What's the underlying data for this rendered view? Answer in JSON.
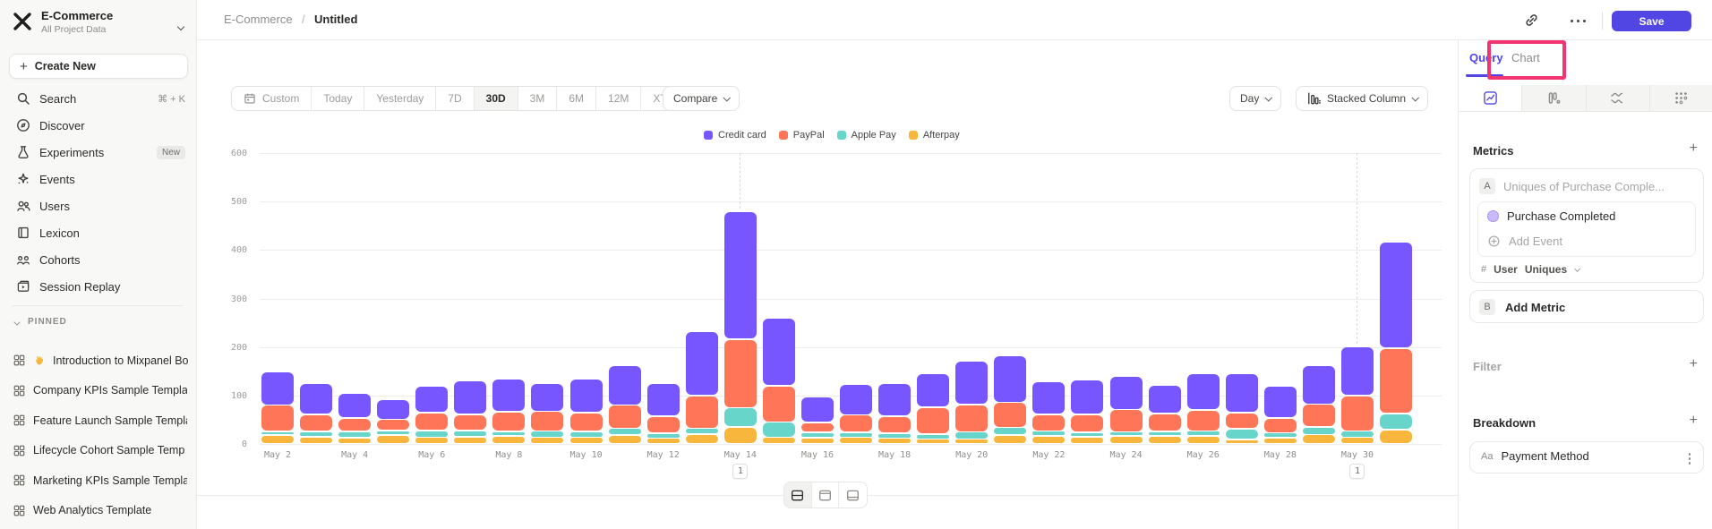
{
  "colors": {
    "accent": "#5146e3",
    "highlight": "#f2356f",
    "sidebar_bg": "#f8f8f6"
  },
  "icons": {
    "plus": "+"
  },
  "sidebar": {
    "project_name": "E-Commerce",
    "project_subtitle": "All Project Data",
    "create_new_label": "Create New",
    "nav": [
      {
        "label": "Search",
        "icon": "search-icon",
        "shortcut": "⌘ + K"
      },
      {
        "label": "Discover",
        "icon": "compass-icon"
      },
      {
        "label": "Experiments",
        "icon": "flask-icon",
        "badge": "New"
      },
      {
        "label": "Events",
        "icon": "spark-icon"
      },
      {
        "label": "Users",
        "icon": "users-icon"
      },
      {
        "label": "Lexicon",
        "icon": "book-icon"
      },
      {
        "label": "Cohorts",
        "icon": "cohorts-icon"
      },
      {
        "label": "Session Replay",
        "icon": "replay-icon"
      }
    ],
    "pinned_header": "PINNED",
    "pinned": [
      {
        "label": "Introduction to Mixpanel Bo",
        "emoji": "👋"
      },
      {
        "label": "Company KPIs Sample Templat"
      },
      {
        "label": "Feature Launch Sample Templa"
      },
      {
        "label": "Lifecycle Cohort Sample Temp"
      },
      {
        "label": "Marketing KPIs Sample Templat"
      },
      {
        "label": "Web Analytics Template"
      }
    ]
  },
  "header": {
    "breadcrumb_project": "E-Commerce",
    "breadcrumb_separator": "/",
    "breadcrumb_page": "Untitled",
    "save_label": "Save"
  },
  "toolbar": {
    "date_ranges": [
      "Custom",
      "Today",
      "Yesterday",
      "7D",
      "30D",
      "3M",
      "6M",
      "12M",
      "XTD"
    ],
    "selected_range": "30D",
    "compare_label": "Compare",
    "granularity_label": "Day",
    "chart_type_label": "Stacked Column"
  },
  "panel": {
    "tabs": [
      {
        "label": "Query",
        "active": true
      },
      {
        "label": "Chart",
        "active": false
      }
    ],
    "metrics_header": "Metrics",
    "metric_badge": "A",
    "metric_summary": "Uniques of Purchase Comple...",
    "event_name": "Purchase Completed",
    "add_event_label": "Add Event",
    "aggregation_symbol": "#",
    "aggregation_entity": "User",
    "aggregation_method": "Uniques",
    "metric_b_badge": "B",
    "add_metric_label": "Add Metric",
    "filter_header": "Filter",
    "breakdown_header": "Breakdown",
    "breakdown_type_badge": "Aa",
    "breakdown_property": "Payment Method"
  },
  "chart_data": {
    "type": "bar",
    "stacked": true,
    "title": "",
    "xlabel": "",
    "ylabel": "",
    "ylim": [
      0,
      600
    ],
    "yticks": [
      0,
      100,
      200,
      300,
      400,
      500,
      600
    ],
    "grid": true,
    "legend_position": "top",
    "x_tick_every": 2,
    "x": [
      "May 2",
      "May 3",
      "May 4",
      "May 5",
      "May 6",
      "May 7",
      "May 8",
      "May 9",
      "May 10",
      "May 11",
      "May 12",
      "May 13",
      "May 14",
      "May 15",
      "May 16",
      "May 17",
      "May 18",
      "May 19",
      "May 20",
      "May 21",
      "May 22",
      "May 23",
      "May 24",
      "May 25",
      "May 26",
      "May 27",
      "May 28",
      "May 29",
      "May 30",
      "May 31"
    ],
    "series": [
      {
        "name": "Credit card",
        "color": "#7856ff",
        "values": [
          70,
          65,
          51,
          41,
          55,
          70,
          68,
          59,
          70,
          82,
          69,
          133,
          264,
          139,
          54,
          63,
          69,
          70,
          90,
          96,
          67,
          71,
          69,
          59,
          75,
          81,
          67,
          80,
          101,
          219
        ]
      },
      {
        "name": "PayPal",
        "color": "#ff7557",
        "values": [
          54,
          35,
          27,
          23,
          37,
          33,
          40,
          40,
          38,
          48,
          35,
          68,
          141,
          75,
          20,
          36,
          35,
          56,
          56,
          52,
          34,
          37,
          46,
          37,
          43,
          33,
          30,
          47,
          73,
          134
        ]
      },
      {
        "name": "Apple Pay",
        "color": "#68d5ca",
        "values": [
          8,
          11,
          13,
          10,
          14,
          13,
          10,
          13,
          12,
          14,
          10,
          12,
          40,
          31,
          11,
          10,
          10,
          10,
          15,
          16,
          10,
          9,
          9,
          9,
          11,
          22,
          10,
          16,
          13,
          33
        ]
      },
      {
        "name": "Afterpay",
        "color": "#f8b73c",
        "values": [
          18,
          15,
          13,
          18,
          14,
          15,
          16,
          14,
          14,
          18,
          12,
          20,
          35,
          14,
          13,
          14,
          12,
          10,
          10,
          18,
          17,
          15,
          16,
          17,
          16,
          9,
          13,
          19,
          14,
          30
        ]
      }
    ]
  },
  "annotations": {
    "markers": [
      {
        "x": "May 14",
        "label": "1"
      },
      {
        "x": "May 30",
        "label": "1"
      }
    ],
    "highlighted_tab": "Chart"
  }
}
